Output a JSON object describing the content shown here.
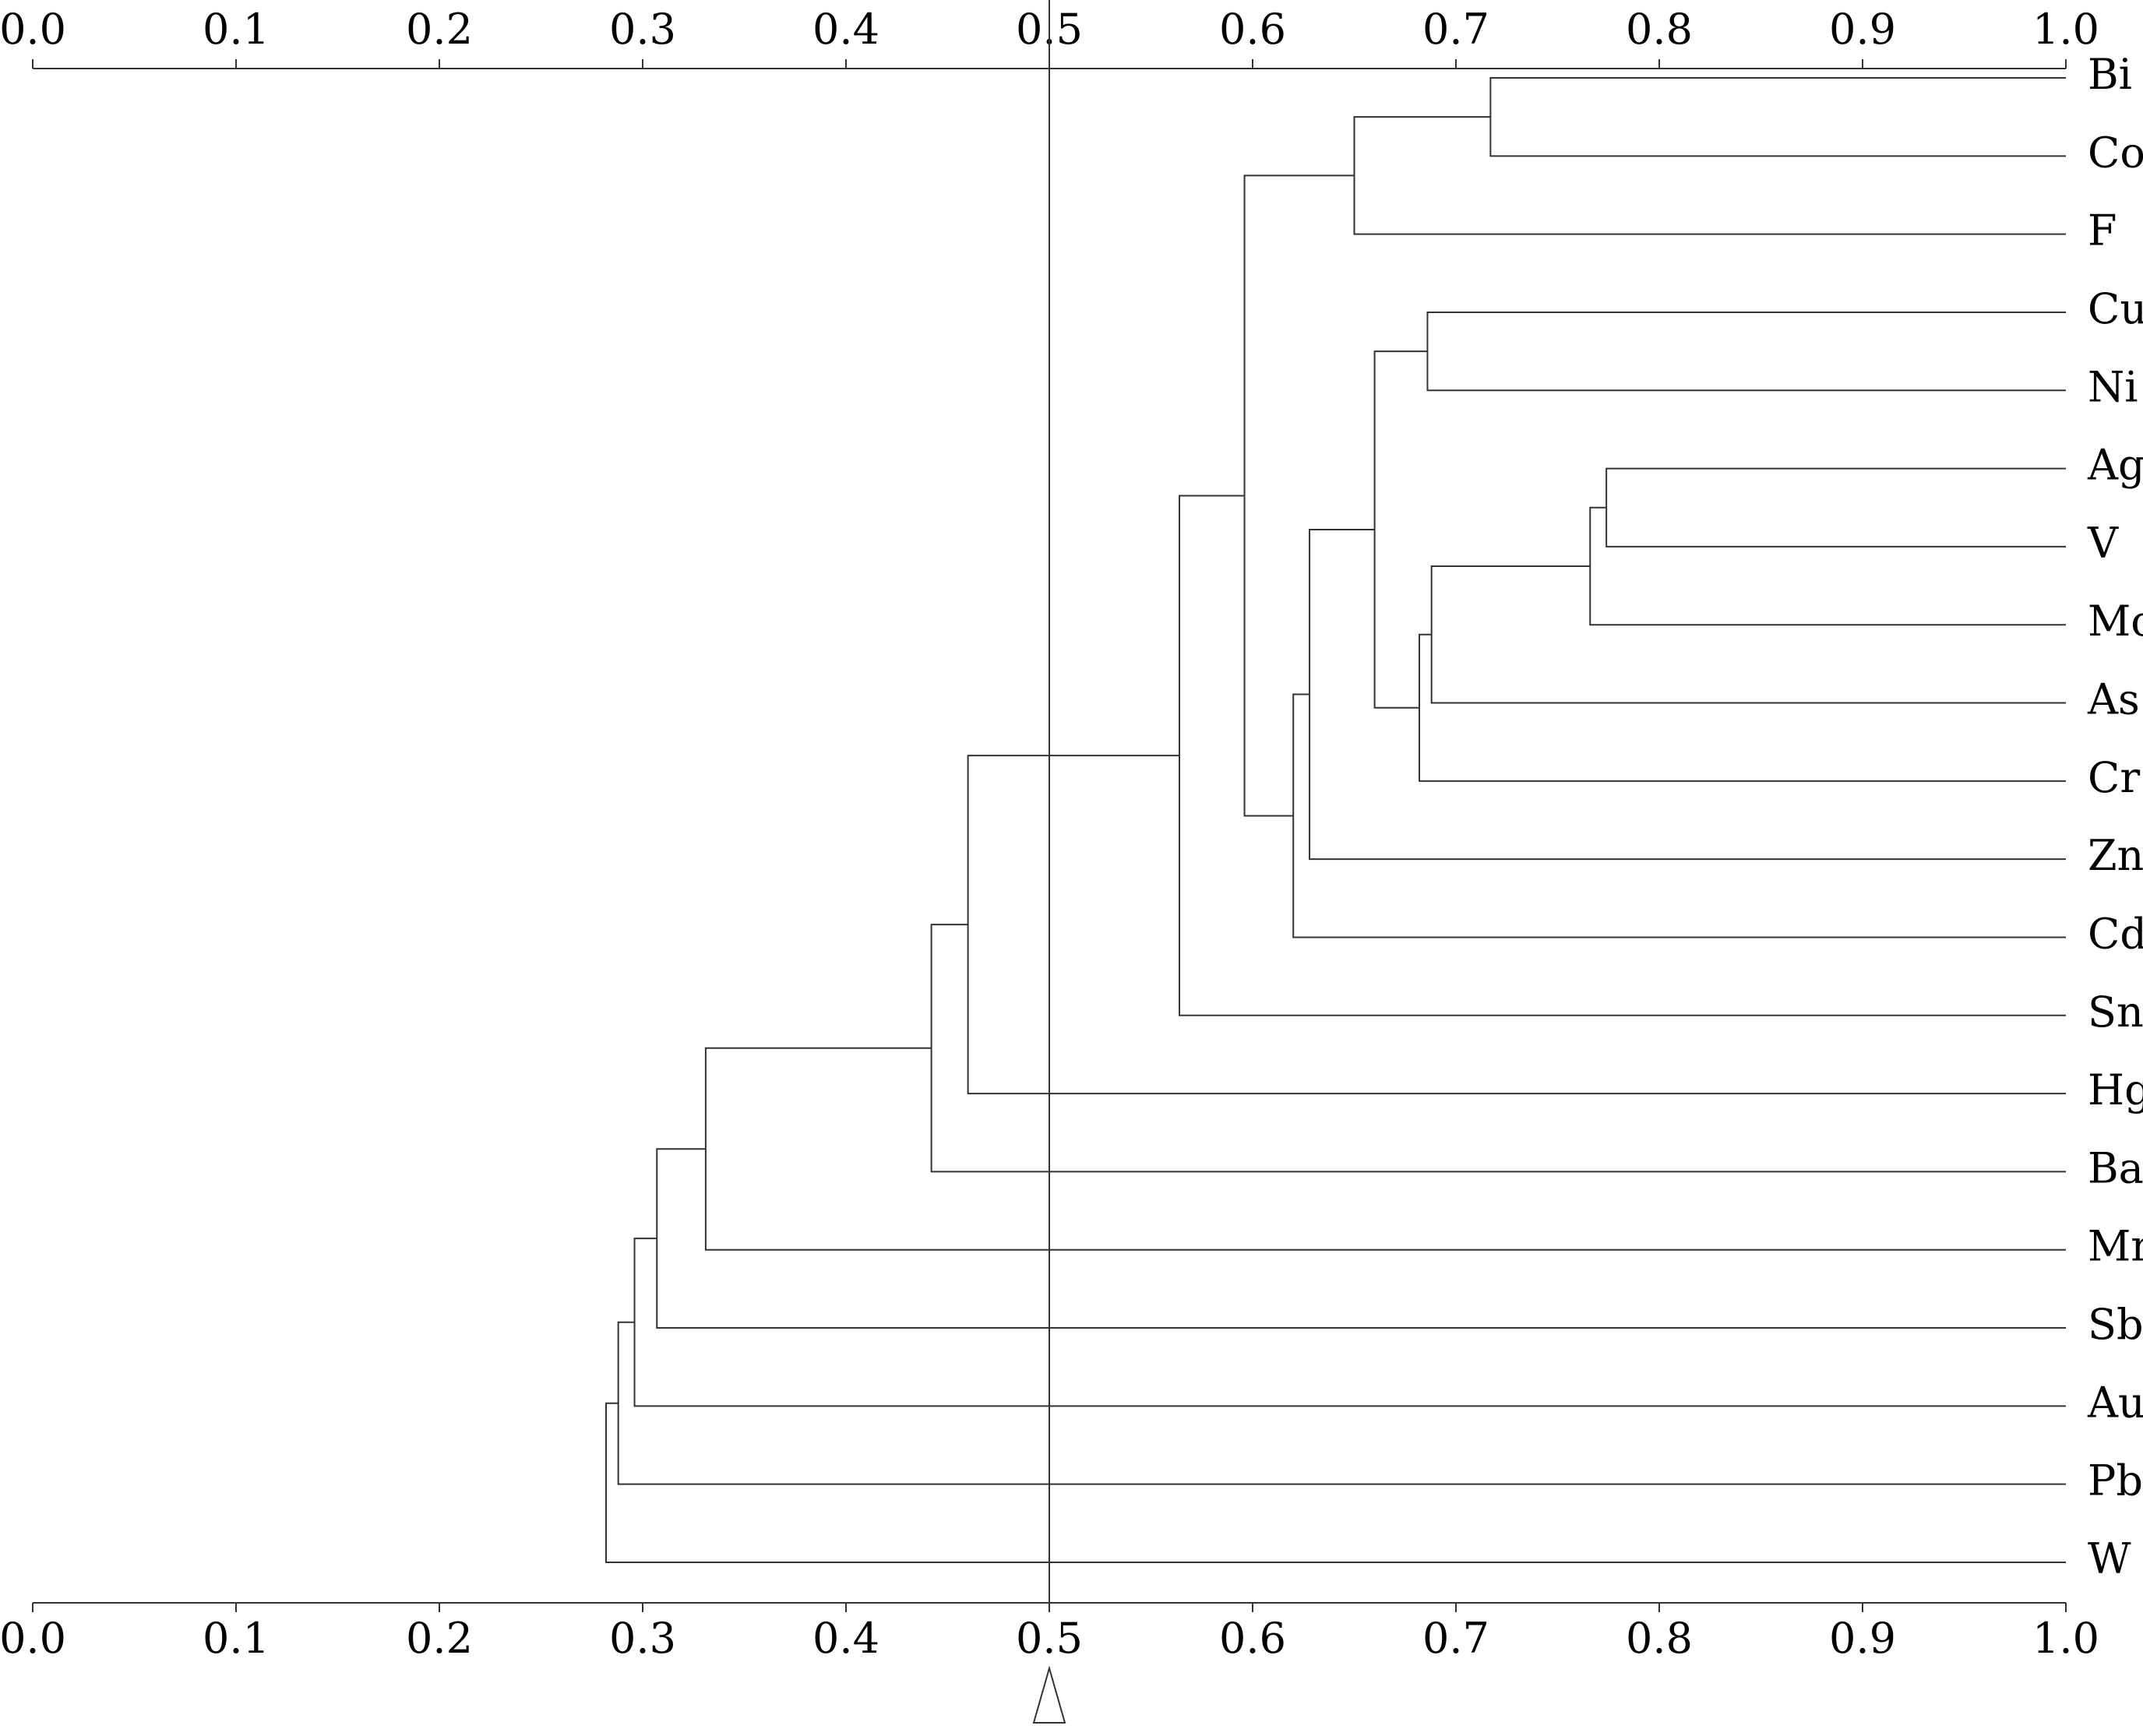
{
  "chart_data": {
    "type": "dendrogram",
    "leaves": [
      "Bi",
      "Co",
      "F",
      "Cu",
      "Ni",
      "Ag",
      "V",
      "Mo",
      "As",
      "Cr",
      "Zn",
      "Cd",
      "Sn",
      "Hg",
      "Ba",
      "Mn",
      "Sb",
      "Au",
      "Pb",
      "W"
    ],
    "merges": [
      {
        "left": 0,
        "right": 1,
        "value": 0.717
      },
      {
        "left": 20,
        "right": 2,
        "value": 0.65
      },
      {
        "left": 3,
        "right": 4,
        "value": 0.686
      },
      {
        "left": 5,
        "right": 6,
        "value": 0.774
      },
      {
        "left": 23,
        "right": 7,
        "value": 0.766
      },
      {
        "left": 24,
        "right": 8,
        "value": 0.688
      },
      {
        "left": 25,
        "right": 9,
        "value": 0.682
      },
      {
        "left": 22,
        "right": 26,
        "value": 0.66
      },
      {
        "left": 27,
        "right": 10,
        "value": 0.628
      },
      {
        "left": 28,
        "right": 11,
        "value": 0.62
      },
      {
        "left": 21,
        "right": 29,
        "value": 0.596
      },
      {
        "left": 30,
        "right": 12,
        "value": 0.564
      },
      {
        "left": 31,
        "right": 13,
        "value": 0.46
      },
      {
        "left": 32,
        "right": 14,
        "value": 0.442
      },
      {
        "left": 33,
        "right": 15,
        "value": 0.331
      },
      {
        "left": 34,
        "right": 16,
        "value": 0.307
      },
      {
        "left": 35,
        "right": 17,
        "value": 0.296
      },
      {
        "left": 36,
        "right": 18,
        "value": 0.288
      },
      {
        "left": 37,
        "right": 19,
        "value": 0.282
      }
    ],
    "threshold": 0.5,
    "xlim": [
      0,
      1
    ],
    "xticks": [
      {
        "value": 0,
        "label": "0.0"
      },
      0.1,
      0.2,
      0.3,
      0.4,
      0.5,
      0.6,
      0.7,
      0.8,
      0.9,
      {
        "value": 1,
        "label": "1.0"
      }
    ]
  }
}
